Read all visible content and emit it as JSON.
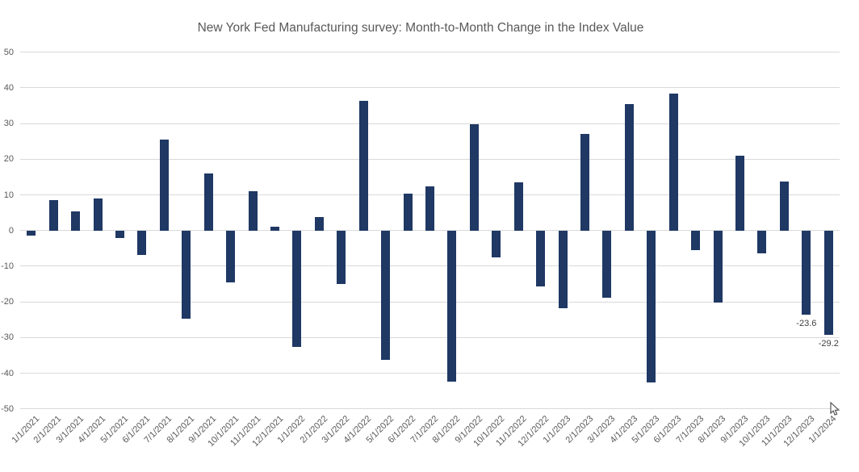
{
  "chart_data": {
    "type": "bar",
    "title": "New York Fed Manufacturing survey: Month-to-Month Change in the Index Value",
    "xlabel": "",
    "ylabel": "",
    "ylim": [
      -50,
      50
    ],
    "y_ticks": [
      50,
      40,
      30,
      20,
      10,
      0,
      -10,
      -20,
      -30,
      -40,
      -50
    ],
    "y_tick_labels": [
      "50",
      "40",
      "30",
      "20",
      "10",
      "0",
      "-10",
      "-20",
      "-30",
      "-40",
      "-50"
    ],
    "grid": true,
    "legend": "none",
    "categories": [
      "1/1/2021",
      "2/1/2021",
      "3/1/2021",
      "4/1/2021",
      "5/1/2021",
      "6/1/2021",
      "7/1/2021",
      "8/1/2021",
      "9/1/2021",
      "10/1/2021",
      "11/1/2021",
      "12/1/2021",
      "1/1/2022",
      "2/1/2022",
      "3/1/2022",
      "4/1/2022",
      "5/1/2022",
      "6/1/2022",
      "7/1/2022",
      "8/1/2022",
      "9/1/2022",
      "10/1/2022",
      "11/1/2022",
      "12/1/2022",
      "1/1/2023",
      "2/1/2023",
      "3/1/2023",
      "4/1/2023",
      "5/1/2023",
      "6/1/2023",
      "7/1/2023",
      "8/1/2023",
      "9/1/2023",
      "10/1/2023",
      "11/1/2023",
      "12/1/2023",
      "1/1/2024"
    ],
    "values": [
      -1.4,
      8.6,
      5.3,
      8.9,
      -2.0,
      -6.9,
      25.6,
      -24.7,
      16.0,
      -14.5,
      11.1,
      1.0,
      -32.6,
      3.8,
      -14.9,
      36.4,
      -36.2,
      10.4,
      12.3,
      -42.4,
      29.8,
      -7.6,
      13.6,
      -15.7,
      -21.7,
      27.1,
      -18.8,
      35.4,
      -42.6,
      38.4,
      -5.5,
      -20.1,
      20.9,
      -6.5,
      13.7,
      -23.6,
      -29.2
    ],
    "data_labels": [
      {
        "index": 35,
        "text": "-23.6"
      },
      {
        "index": 36,
        "text": "-29.2"
      }
    ]
  },
  "colors": {
    "bar": "#1f3864",
    "gridline": "#d9d9d9",
    "title_text": "#595959",
    "tick_text": "#595959",
    "data_label_text": "#404040",
    "background": "#ffffff"
  }
}
